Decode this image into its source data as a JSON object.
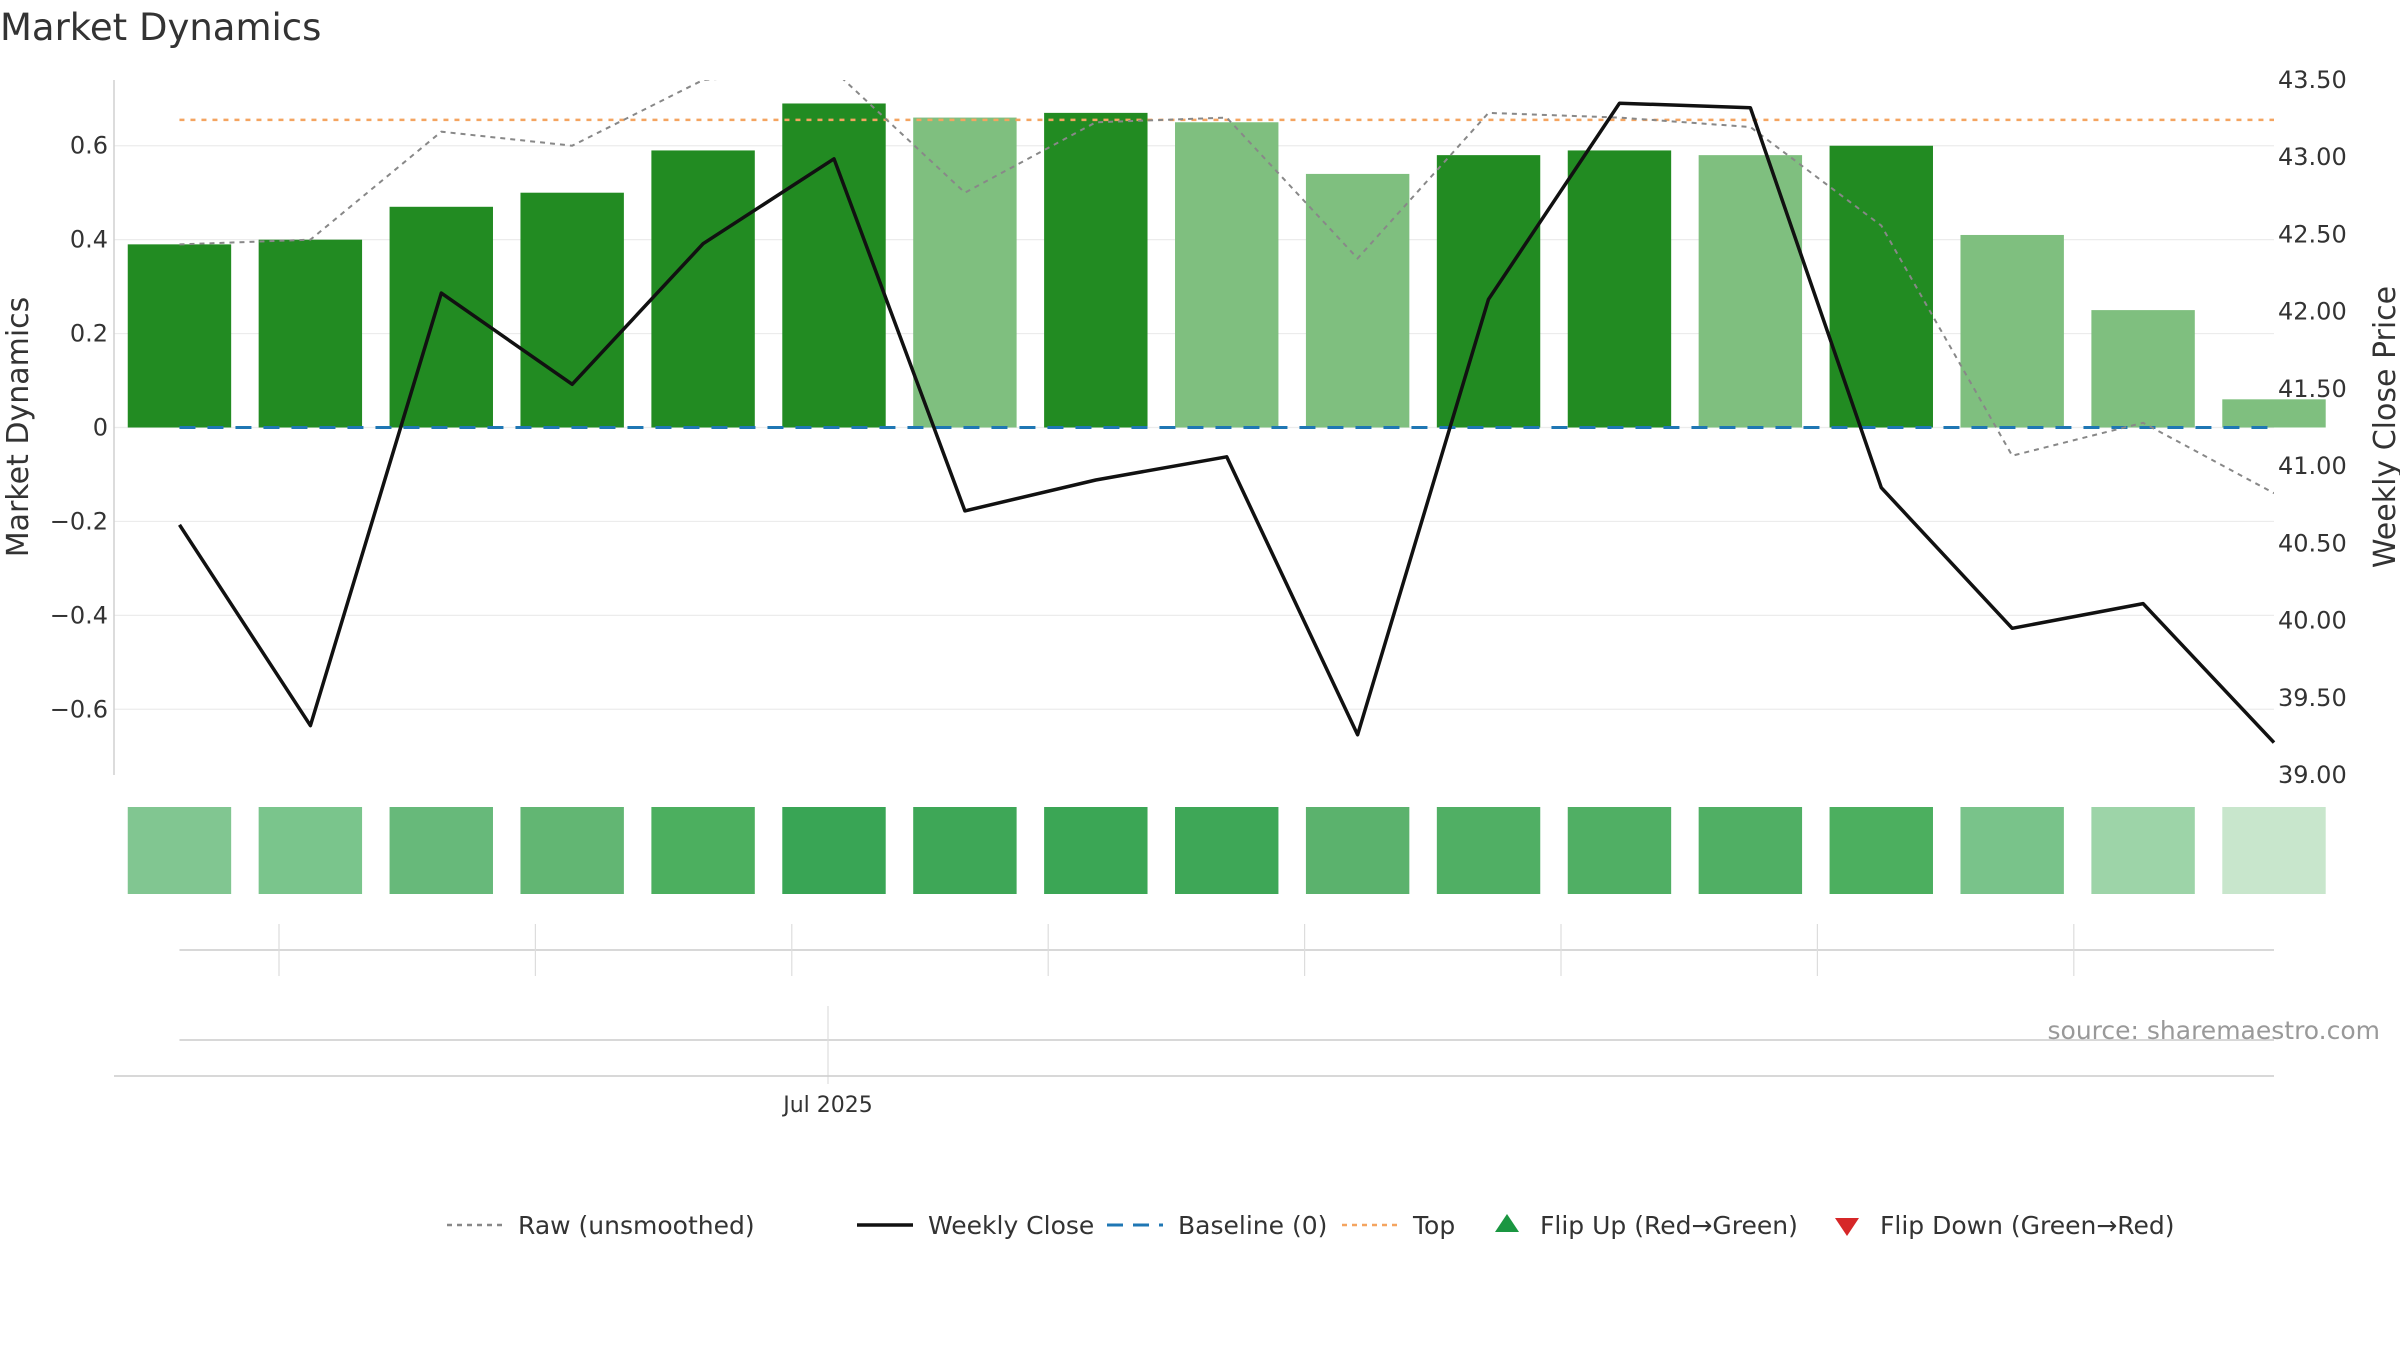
{
  "chart_data": {
    "type": "bar",
    "title": "Market Dynamics",
    "ylabel": "Market Dynamics",
    "y2label": "Weekly Close Price",
    "ylim": [
      -0.74,
      0.74
    ],
    "y2lim": [
      39.0,
      43.5
    ],
    "yticks": [
      -0.6,
      -0.4,
      -0.2,
      0,
      0.2,
      0.4,
      0.6
    ],
    "ytick_labels": [
      "−0.6",
      "−0.4",
      "−0.2",
      "0",
      "0.2",
      "0.4",
      "0.6"
    ],
    "y2ticks": [
      39.0,
      39.5,
      40.0,
      40.5,
      41.0,
      41.5,
      42.0,
      42.5,
      43.0,
      43.5
    ],
    "y2tick_labels": [
      "39.00",
      "39.50",
      "40.00",
      "40.50",
      "41.00",
      "41.50",
      "42.00",
      "42.50",
      "43.00",
      "43.50"
    ],
    "x_date_label": "Jul 2025",
    "n_weeks": 17,
    "market_dynamics": [
      0.39,
      0.4,
      0.47,
      0.5,
      0.59,
      0.69,
      0.66,
      0.67,
      0.65,
      0.54,
      0.58,
      0.59,
      0.58,
      0.6,
      0.41,
      0.25,
      0.06
    ],
    "bar_colors": [
      "#228b22",
      "#228b22",
      "#228b22",
      "#228b22",
      "#228b22",
      "#228b22",
      "#7fbf7f",
      "#228b22",
      "#7fbf7f",
      "#7fbf7f",
      "#228b22",
      "#228b22",
      "#7fbf7f",
      "#228b22",
      "#7fbf7f",
      "#7fbf7f",
      "#7fbf7f"
    ],
    "raw_unsmoothed": [
      0.39,
      0.4,
      0.63,
      0.6,
      0.74,
      0.76,
      0.5,
      0.65,
      0.66,
      0.36,
      0.67,
      0.66,
      0.64,
      0.43,
      -0.06,
      0.01,
      -0.14
    ],
    "weekly_close": [
      40.62,
      39.32,
      42.12,
      41.53,
      42.44,
      42.99,
      40.71,
      40.91,
      41.06,
      39.26,
      42.08,
      43.35,
      43.32,
      40.86,
      39.95,
      40.11,
      39.21
    ],
    "baseline": 0,
    "top": 0.655,
    "heat_colors": [
      "#81c691",
      "#7ac58c",
      "#67b97a",
      "#62b673",
      "#4caf5f",
      "#39a555",
      "#3ea757",
      "#3ba655",
      "#3ea757",
      "#5bb26d",
      "#50af64",
      "#50af64",
      "#50af64",
      "#4caf5f",
      "#79c38a",
      "#9dd4a8",
      "#c8e6cc"
    ],
    "legend_position": "bottom",
    "legend": [
      {
        "label": "Raw (unsmoothed)",
        "kind": "dotted-line",
        "color": "#888888"
      },
      {
        "label": "Weekly Close",
        "kind": "line",
        "color": "#111111"
      },
      {
        "label": "Baseline (0)",
        "kind": "dashed-line",
        "color": "#1f77b4"
      },
      {
        "label": "Top",
        "kind": "dotted-line",
        "color": "#f4a460"
      },
      {
        "label": "Flip Up (Red→Green)",
        "kind": "triangle-up",
        "color": "#1a9641"
      },
      {
        "label": "Flip Down (Green→Red)",
        "kind": "triangle-down",
        "color": "#d62728"
      }
    ],
    "source": "source: sharemaestro.com"
  }
}
